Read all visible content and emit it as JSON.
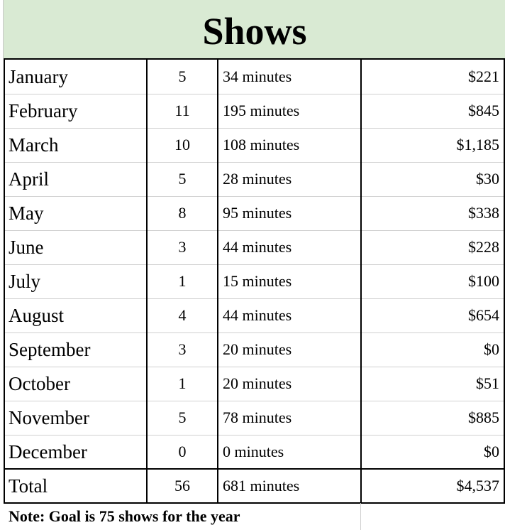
{
  "title": "Shows",
  "rows": [
    {
      "month": "January",
      "count": "5",
      "minutes": "34 minutes",
      "amount": "$221"
    },
    {
      "month": "February",
      "count": "11",
      "minutes": "195 minutes",
      "amount": "$845"
    },
    {
      "month": "March",
      "count": "10",
      "minutes": "108 minutes",
      "amount": "$1,185"
    },
    {
      "month": "April",
      "count": "5",
      "minutes": "28 minutes",
      "amount": "$30"
    },
    {
      "month": "May",
      "count": "8",
      "minutes": "95 minutes",
      "amount": "$338"
    },
    {
      "month": "June",
      "count": "3",
      "minutes": "44 minutes",
      "amount": "$228"
    },
    {
      "month": "July",
      "count": "1",
      "minutes": "15 minutes",
      "amount": "$100"
    },
    {
      "month": "August",
      "count": "4",
      "minutes": "44 minutes",
      "amount": "$654"
    },
    {
      "month": "September",
      "count": "3",
      "minutes": "20 minutes",
      "amount": "$0"
    },
    {
      "month": "October",
      "count": "1",
      "minutes": "20 minutes",
      "amount": "$51"
    },
    {
      "month": "November",
      "count": "5",
      "minutes": "78 minutes",
      "amount": "$885"
    },
    {
      "month": "December",
      "count": "0",
      "minutes": "0 minutes",
      "amount": "$0"
    }
  ],
  "total": {
    "month": "Total",
    "count": "56",
    "minutes": "681 minutes",
    "amount": "$4,537"
  },
  "note": "Note: Goal is 75 shows for the year",
  "colors": {
    "title_band": "#d9ead3",
    "grid": "#d0d0d0",
    "border": "#000000"
  }
}
